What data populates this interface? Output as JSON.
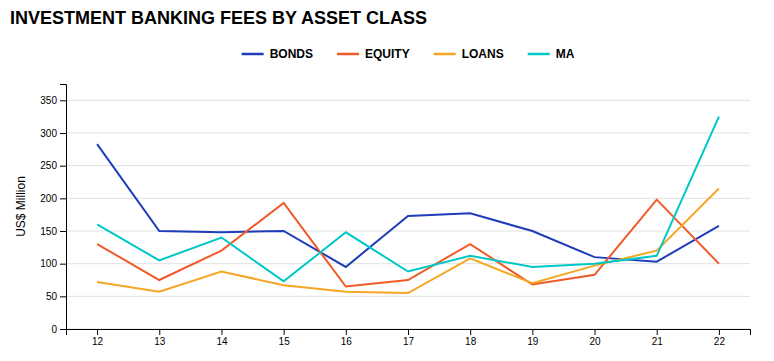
{
  "chart_data": {
    "type": "line",
    "title": "INVESTMENT BANKING FEES BY ASSET CLASS",
    "y_label": "US$ Million",
    "x": [
      12,
      13,
      14,
      15,
      16,
      17,
      18,
      19,
      20,
      21,
      22
    ],
    "series": [
      {
        "name": "BONDS",
        "color": "#1f3cba",
        "values": [
          283,
          150,
          148,
          150,
          95,
          173,
          177,
          150,
          110,
          103,
          158
        ]
      },
      {
        "name": "EQUITY",
        "color": "#f05a28",
        "values": [
          130,
          75,
          120,
          193,
          65,
          75,
          130,
          68,
          83,
          198,
          100
        ]
      },
      {
        "name": "LOANS",
        "color": "#f5a623",
        "values": [
          72,
          57,
          88,
          67,
          57,
          55,
          108,
          70,
          97,
          120,
          215
        ]
      },
      {
        "name": "MA",
        "color": "#00c7c7",
        "values": [
          160,
          105,
          140,
          73,
          148,
          88,
          112,
          95,
          100,
          112,
          325
        ]
      }
    ],
    "xlim": [
      11.5,
      22.5
    ],
    "xticks": [
      12,
      13,
      14,
      15,
      16,
      17,
      18,
      19,
      20,
      21,
      22
    ],
    "ylim": [
      0,
      375
    ],
    "yticks": [
      0,
      50,
      100,
      150,
      200,
      250,
      300,
      350
    ],
    "grid": "y",
    "legend": "top"
  }
}
